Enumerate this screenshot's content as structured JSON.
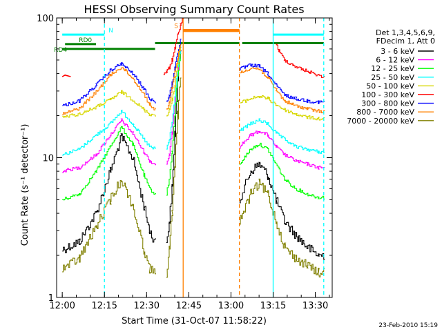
{
  "chart_data": {
    "type": "line",
    "title": "HESSI Observing Summary Count Rates",
    "xlabel": "Start Time (31-Oct-07 11:58:22)",
    "ylabel": "Count Rate (s⁻¹ detector⁻¹)",
    "date_stamp": "23-Feb-2010 15:19",
    "y_scale": "log",
    "ylim": [
      1,
      100
    ],
    "xlim_minutes": [
      "11:58",
      "13:36"
    ],
    "x_ticks": [
      "12:00",
      "12:15",
      "12:30",
      "12:45",
      "13:00",
      "13:15",
      "13:30"
    ],
    "y_ticks": [
      "1",
      "10",
      "100"
    ],
    "legend": {
      "position": "right",
      "header": [
        "Det 1,3,4,5,6,9,",
        "FDecim 1, Att 0"
      ]
    },
    "series": [
      {
        "name": "3 - 6 keV",
        "color": "#000000",
        "segments": [
          {
            "t": [
              "12:00",
              "12:06",
              "12:12",
              "12:17",
              "12:21",
              "12:25",
              "12:29",
              "12:31",
              "12:33"
            ],
            "v": [
              2.2,
              2.5,
              4.0,
              8.0,
              14.0,
              10.0,
              4.5,
              3.0,
              2.5
            ]
          },
          {
            "t": [
              "12:37",
              "12:38",
              "12:39",
              "12:40",
              "12:41",
              "12:42"
            ],
            "v": [
              2.5,
              3.5,
              6.0,
              15.0,
              35.0,
              60.0
            ]
          },
          {
            "t": [
              "13:03",
              "13:07",
              "13:10",
              "13:13",
              "13:16",
              "13:19",
              "13:23",
              "13:27",
              "13:31",
              "13:33"
            ],
            "v": [
              5.0,
              8.0,
              9.0,
              7.5,
              5.0,
              3.5,
              2.8,
              2.3,
              2.0,
              2.0
            ]
          }
        ]
      },
      {
        "name": "6 - 12 keV",
        "color": "#ff00ff",
        "segments": [
          {
            "t": [
              "12:00",
              "12:06",
              "12:12",
              "12:17",
              "12:21",
              "12:25",
              "12:29",
              "12:31",
              "12:33"
            ],
            "v": [
              8.0,
              8.5,
              10.5,
              14.5,
              18.5,
              15.0,
              11.0,
              9.5,
              9.0
            ]
          },
          {
            "t": [
              "12:37",
              "12:38",
              "12:39",
              "12:40",
              "12:41",
              "12:42"
            ],
            "v": [
              9.0,
              10.5,
              15.0,
              24.0,
              40.0,
              60.0
            ]
          },
          {
            "t": [
              "13:03",
              "13:07",
              "13:10",
              "13:13",
              "13:16",
              "13:19",
              "13:23",
              "13:27",
              "13:31",
              "13:33"
            ],
            "v": [
              12.0,
              14.5,
              15.5,
              14.5,
              12.0,
              10.5,
              9.5,
              9.0,
              8.5,
              8.5
            ]
          }
        ]
      },
      {
        "name": "12 - 25 keV",
        "color": "#00ff00",
        "segments": [
          {
            "t": [
              "12:00",
              "12:06",
              "12:12",
              "12:17",
              "12:21",
              "12:25",
              "12:29",
              "12:31",
              "12:33"
            ],
            "v": [
              5.0,
              5.5,
              8.0,
              12.0,
              16.5,
              12.5,
              7.5,
              6.0,
              5.5
            ]
          },
          {
            "t": [
              "12:37",
              "12:38",
              "12:39",
              "12:40",
              "12:41",
              "12:42"
            ],
            "v": [
              5.5,
              7.0,
              11.0,
              20.0,
              38.0,
              55.0
            ]
          },
          {
            "t": [
              "13:03",
              "13:07",
              "13:10",
              "13:13",
              "13:16",
              "13:19",
              "13:23",
              "13:27",
              "13:31",
              "13:33"
            ],
            "v": [
              9.0,
              11.5,
              12.5,
              11.5,
              9.0,
              7.0,
              6.0,
              5.5,
              5.2,
              5.2
            ]
          }
        ]
      },
      {
        "name": "25 - 50 keV",
        "color": "#00ffff",
        "segments": [
          {
            "t": [
              "12:00",
              "12:06",
              "12:12",
              "12:17",
              "12:21",
              "12:25",
              "12:29",
              "12:31",
              "12:33"
            ],
            "v": [
              10.5,
              11.5,
              14.5,
              17.5,
              21.5,
              17.5,
              13.5,
              12.0,
              11.5
            ]
          },
          {
            "t": [
              "12:37",
              "12:38",
              "12:39",
              "12:40",
              "12:41",
              "12:42"
            ],
            "v": [
              11.5,
              13.5,
              18.0,
              27.0,
              45.0,
              62.0
            ]
          },
          {
            "t": [
              "13:03",
              "13:07",
              "13:10",
              "13:13",
              "13:16",
              "13:19",
              "13:23",
              "13:27",
              "13:31",
              "13:33"
            ],
            "v": [
              15.5,
              17.5,
              18.5,
              17.5,
              15.0,
              13.5,
              12.0,
              11.5,
              11.0,
              11.0
            ]
          }
        ]
      },
      {
        "name": "50 - 100 keV",
        "color": "#d7d700",
        "segments": [
          {
            "t": [
              "12:00",
              "12:06",
              "12:12",
              "12:17",
              "12:21",
              "12:25",
              "12:29",
              "12:31",
              "12:33"
            ],
            "v": [
              19.5,
              20.5,
              23.0,
              26.0,
              29.5,
              26.0,
              22.0,
              20.5,
              20.0
            ]
          },
          {
            "t": [
              "12:37",
              "12:38",
              "12:39",
              "12:40",
              "12:41",
              "12:42"
            ],
            "v": [
              20.0,
              22.0,
              26.0,
              33.0,
              48.0,
              65.0
            ]
          },
          {
            "t": [
              "13:03",
              "13:07",
              "13:10",
              "13:13",
              "13:16",
              "13:19",
              "13:23",
              "13:27",
              "13:31",
              "13:33"
            ],
            "v": [
              24.5,
              26.5,
              27.5,
              26.5,
              24.0,
              22.0,
              20.5,
              19.5,
              19.0,
              19.0
            ]
          }
        ]
      },
      {
        "name": "100 - 300 keV",
        "color": "#ff0000",
        "segments": [
          {
            "t": [
              "12:00",
              "12:01",
              "12:03"
            ],
            "v": [
              38.0,
              39.0,
              38.0
            ]
          },
          {
            "t": [
              "12:36",
              "12:37",
              "12:38",
              "12:39",
              "12:40",
              "12:41",
              "12:42",
              "12:43"
            ],
            "v": [
              40.0,
              41.0,
              44.0,
              50.0,
              60.0,
              75.0,
              90.0,
              100.0
            ]
          },
          {
            "t": [
              "13:16",
              "13:17",
              "13:19",
              "13:22",
              "13:25",
              "13:28",
              "13:31",
              "13:33"
            ],
            "v": [
              66.0,
              58.0,
              50.0,
              46.0,
              43.0,
              41.0,
              39.0,
              38.0
            ]
          }
        ]
      },
      {
        "name": "300 - 800 keV",
        "color": "#0000ff",
        "segments": [
          {
            "t": [
              "12:00",
              "12:06",
              "12:12",
              "12:17",
              "12:21",
              "12:25",
              "12:29",
              "12:31",
              "12:33"
            ],
            "v": [
              23.5,
              25.5,
              33.0,
              42.0,
              47.0,
              40.0,
              31.0,
              26.5,
              25.0
            ]
          },
          {
            "t": [
              "12:37",
              "12:38",
              "12:39",
              "12:40",
              "12:41",
              "12:42"
            ],
            "v": [
              25.0,
              28.0,
              34.0,
              44.0,
              56.0,
              70.0
            ]
          },
          {
            "t": [
              "13:03",
              "13:07",
              "13:10",
              "13:13",
              "13:16",
              "13:19",
              "13:23",
              "13:27",
              "13:31",
              "13:33"
            ],
            "v": [
              43.0,
              46.0,
              45.0,
              40.0,
              33.0,
              28.0,
              26.5,
              25.5,
              25.0,
              25.0
            ]
          }
        ]
      },
      {
        "name": "800 - 7000 keV",
        "color": "#ff8000",
        "segments": [
          {
            "t": [
              "12:00",
              "12:06",
              "12:12",
              "12:17",
              "12:21",
              "12:25",
              "12:29",
              "12:31",
              "12:33"
            ],
            "v": [
              20.5,
              22.5,
              29.5,
              39.0,
              44.5,
              37.0,
              28.5,
              24.0,
              22.0
            ]
          },
          {
            "t": [
              "12:37",
              "12:38",
              "12:39",
              "12:40",
              "12:41",
              "12:42"
            ],
            "v": [
              22.0,
              25.0,
              31.0,
              41.0,
              52.0,
              66.0
            ]
          },
          {
            "t": [
              "12:43",
              "13:03"
            ],
            "v": [
              80.0,
              80.0
            ]
          },
          {
            "t": [
              "13:03",
              "13:07",
              "13:10",
              "13:13",
              "13:16",
              "13:19",
              "13:23",
              "13:27",
              "13:31",
              "13:33"
            ],
            "v": [
              40.0,
              44.0,
              43.0,
              37.5,
              30.5,
              25.5,
              23.5,
              22.5,
              21.5,
              21.5
            ]
          }
        ]
      },
      {
        "name": "7000 - 20000 keV",
        "color": "#808000",
        "segments": [
          {
            "t": [
              "12:00",
              "12:06",
              "12:12",
              "12:17",
              "12:21",
              "12:25",
              "12:29",
              "12:31",
              "12:33"
            ],
            "v": [
              1.6,
              1.9,
              3.2,
              5.0,
              7.0,
              4.5,
              2.2,
              1.6,
              1.5
            ]
          },
          {
            "t": [
              "12:37",
              "12:38",
              "12:39",
              "12:40",
              "12:41",
              "12:42"
            ],
            "v": [
              1.5,
              2.2,
              4.0,
              9.0,
              20.0,
              40.0
            ]
          },
          {
            "t": [
              "13:03",
              "13:07",
              "13:10",
              "13:13",
              "13:16",
              "13:19",
              "13:23",
              "13:27",
              "13:31",
              "13:33"
            ],
            "v": [
              3.5,
              5.5,
              6.5,
              5.5,
              3.5,
              2.3,
              1.9,
              1.7,
              1.5,
              1.5
            ]
          }
        ]
      }
    ],
    "flags": [
      {
        "label": "RD0",
        "color": "#008000",
        "t_start": "12:01",
        "t_end": "12:12",
        "v": 65
      },
      {
        "label": "RD4",
        "color": "#008000",
        "t_start": "12:00",
        "t_end": "12:33",
        "v": 60
      },
      {
        "label": "",
        "color": "#008000",
        "t_start": "12:33",
        "t_end": "13:03",
        "v": 66
      },
      {
        "label": "",
        "color": "#008000",
        "t_start": "13:04",
        "t_end": "13:33",
        "v": 66
      },
      {
        "label": "N",
        "color": "#00ffff",
        "t_start": "12:00",
        "t_end": "12:15",
        "v": 76
      },
      {
        "label": "",
        "color": "#00ffff",
        "t_start": "13:15",
        "t_end": "13:33",
        "v": 76
      },
      {
        "label": "S",
        "color": "#ff8000",
        "t_start": "12:43",
        "t_end": "13:03",
        "v": 82
      }
    ],
    "vertical_markers": [
      {
        "t": "12:15",
        "color": "#00ffff",
        "style": "dashed"
      },
      {
        "t": "12:43",
        "color": "#ff8000",
        "style": "solid"
      },
      {
        "t": "13:03",
        "color": "#ff8000",
        "style": "dashed"
      },
      {
        "t": "13:15",
        "color": "#00ffff",
        "style": "solid"
      },
      {
        "t": "13:33",
        "color": "#00ffff",
        "style": "dashed"
      }
    ]
  }
}
